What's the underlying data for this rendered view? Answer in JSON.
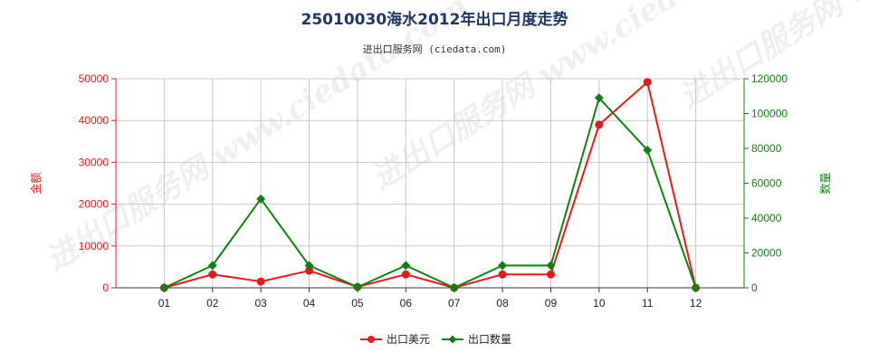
{
  "chart_data": {
    "type": "line",
    "title": "25010030海水2012年出口月度走势",
    "subtitle": "进出口服务网 (ciedata.com)",
    "watermark": "进出口服务网 www.ciedata.com",
    "categories": [
      "01",
      "02",
      "03",
      "04",
      "05",
      "06",
      "07",
      "08",
      "09",
      "10",
      "11",
      "12"
    ],
    "ylabel_left": "金额",
    "ylabel_right": "数量",
    "ylim_left": [
      0,
      50000
    ],
    "yticks_left": [
      0,
      10000,
      20000,
      30000,
      40000,
      50000
    ],
    "ylim_right": [
      0,
      120000
    ],
    "yticks_right": [
      0,
      20000,
      40000,
      60000,
      80000,
      100000,
      120000
    ],
    "grid": true,
    "legend_position": "bottom-center",
    "series": [
      {
        "name": "出口美元",
        "axis": "left",
        "color": "#e8191b",
        "marker": "circle",
        "values": [
          0,
          3200,
          1500,
          4100,
          200,
          3200,
          0,
          3200,
          3200,
          39000,
          49200,
          0
        ]
      },
      {
        "name": "出口数量",
        "axis": "right",
        "color": "#118011",
        "marker": "diamond",
        "values": [
          0,
          12800,
          51000,
          12800,
          400,
          12800,
          0,
          12800,
          12800,
          109000,
          79000,
          0
        ]
      }
    ],
    "colors": {
      "title": "#1f3864",
      "left_axis": "#e8191b",
      "right_axis": "#118011",
      "grid": "#c8c8c8"
    }
  }
}
